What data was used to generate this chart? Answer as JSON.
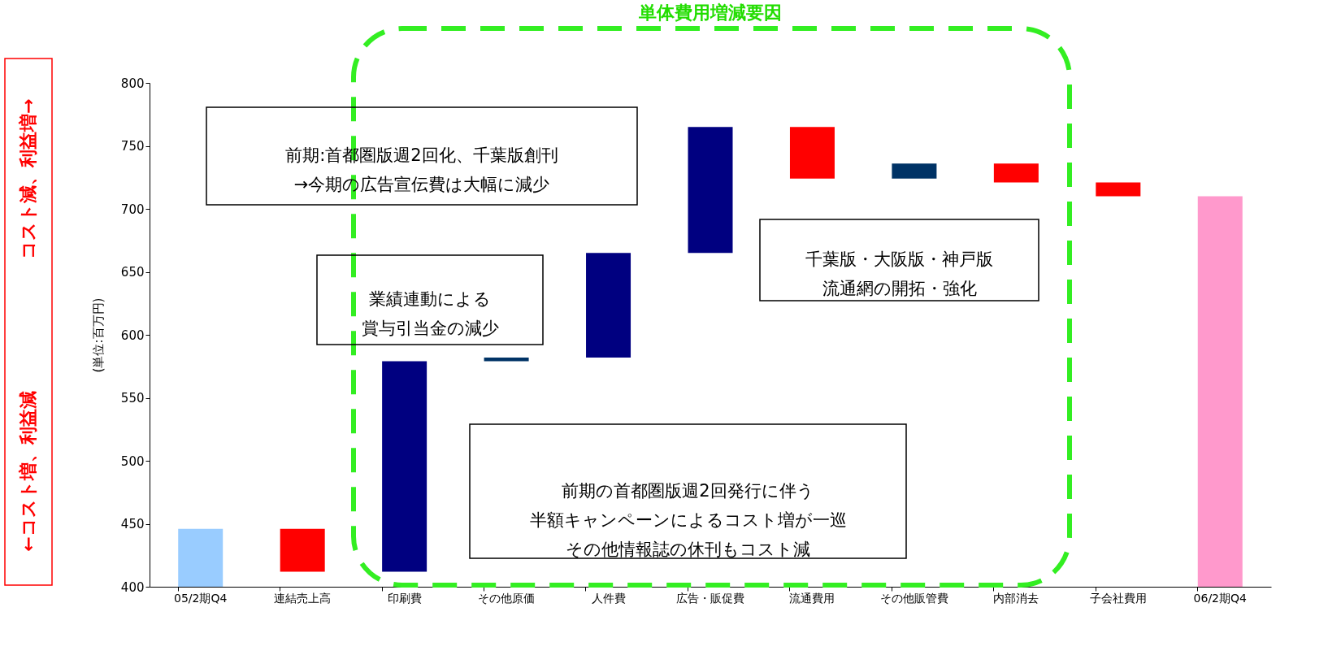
{
  "chart_data": {
    "type": "bar",
    "title": "単体費用増減要因",
    "ylabel": "(単位:百万円)",
    "categories": [
      "05/2期Q4",
      "連結売上高",
      "印刷費",
      "その他原価",
      "人件費",
      "広告・販促費",
      "流通費用",
      "その他販管費",
      "内部消去",
      "子会社費用",
      "06/2期Q4"
    ],
    "base": [
      400,
      412,
      412,
      579,
      582,
      665,
      724,
      724,
      721,
      710,
      400
    ],
    "values": [
      46,
      34,
      167,
      3,
      83,
      100,
      41,
      12,
      15,
      11,
      310
    ],
    "colors": [
      "#99ccff",
      "#ff0000",
      "#000080",
      "#003366",
      "#000080",
      "#000080",
      "#ff0000",
      "#003366",
      "#ff0000",
      "#ff0000",
      "#ff99cc"
    ],
    "ylim": [
      400,
      800
    ],
    "yticks": [
      400,
      450,
      500,
      550,
      600,
      650,
      700,
      750,
      800
    ],
    "grid": false,
    "annotations": [
      "コスト減、利益増→",
      "←コスト増、利益減",
      "前期:首都圏版週2回化、千葉版創刊→今期の広告宣伝費は大幅に減少",
      "業績連動による賞与引当金の減少",
      "前期の首都圏版週2回発行に伴う半額キャンペーンによるコスト増が一巡その他情報誌の休刊もコスト減",
      "千葉版・大阪版・神戸版流通網の開拓・強化"
    ]
  }
}
